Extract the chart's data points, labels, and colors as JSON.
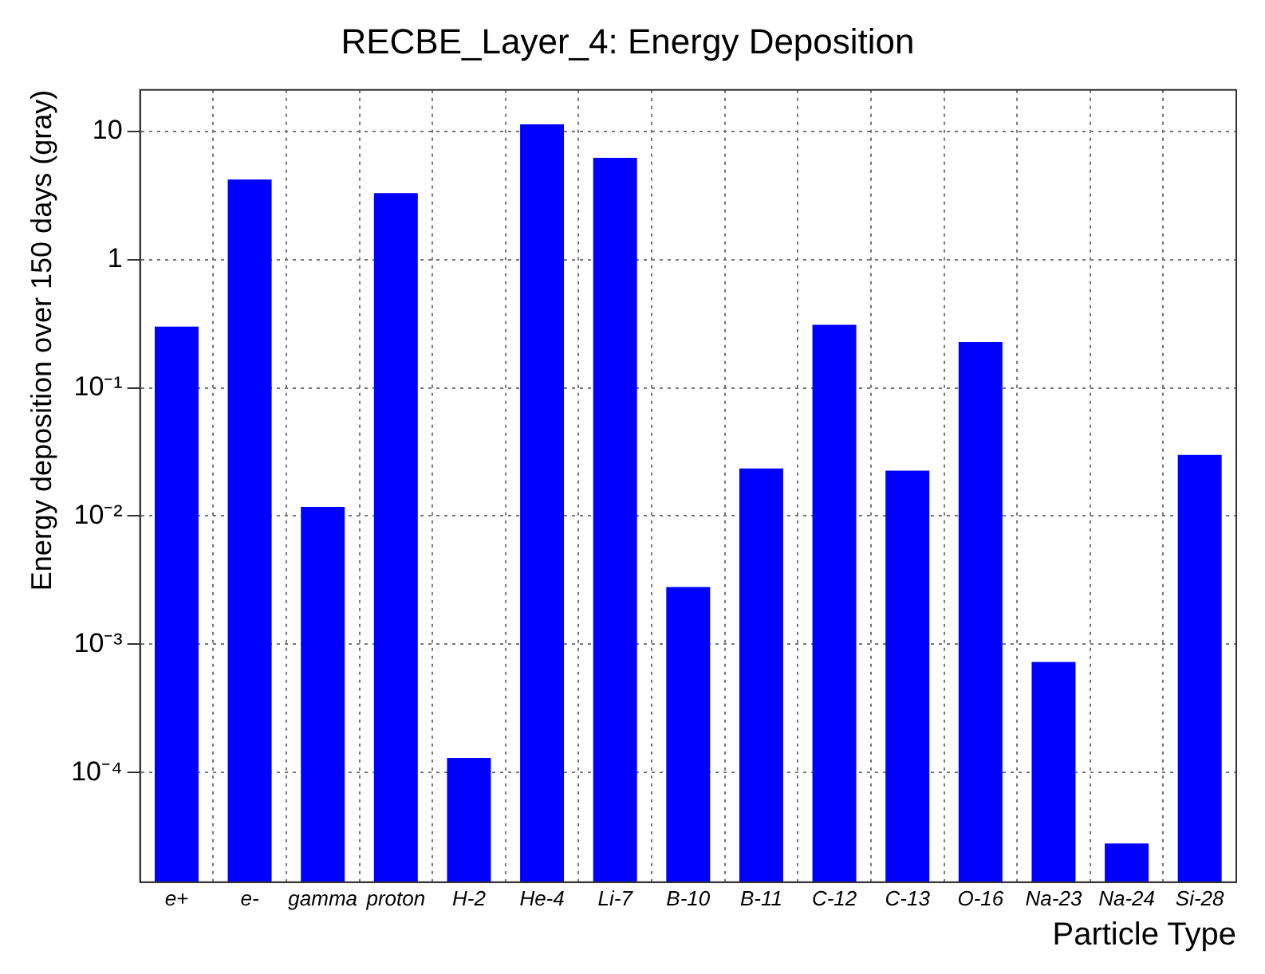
{
  "chart_data": {
    "type": "bar",
    "title": "RECBE_Layer_4: Energy Deposition",
    "xlabel": "Particle Type",
    "ylabel": "Energy deposition over 150 days (gray)",
    "categories": [
      "e+",
      "e-",
      "gamma",
      "proton",
      "H-2",
      "He-4",
      "Li-7",
      "B-10",
      "B-11",
      "C-12",
      "C-13",
      "O-16",
      "Na-23",
      "Na-24",
      "Si-28"
    ],
    "values": [
      0.3,
      4.2,
      0.0118,
      3.3,
      0.00013,
      11.3,
      6.2,
      0.0028,
      0.0235,
      0.31,
      0.0226,
      0.228,
      0.00073,
      2.8e-05,
      0.03
    ],
    "color": "#0000ff",
    "log": "y",
    "ylim": [
      1.4e-05,
      21
    ],
    "yticks": [
      {
        "value": 0.0001,
        "label": "10⁻⁴"
      },
      {
        "value": 0.001,
        "label": "10⁻³"
      },
      {
        "value": 0.01,
        "label": "10⁻²"
      },
      {
        "value": 0.1,
        "label": "10⁻¹"
      },
      1,
      10
    ],
    "grid": true,
    "legend": false
  }
}
